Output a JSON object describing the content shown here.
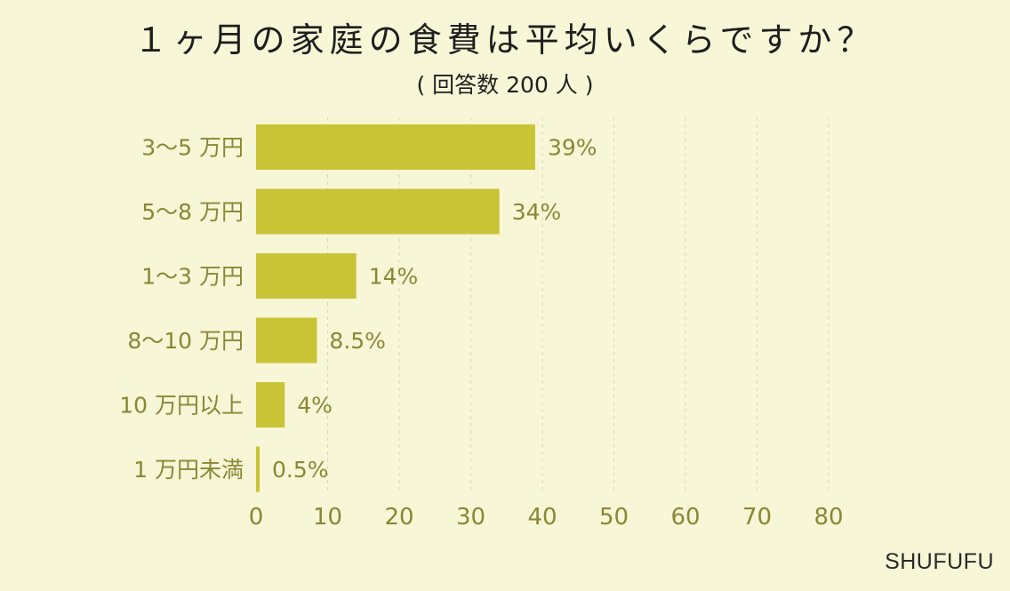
{
  "title": "１ヶ月の家庭の食費は平均いくらですか？",
  "subtitle": "( 回答数 200 人 )",
  "brand": "SHUFUFU",
  "colors": {
    "background": "#f7f6d6",
    "bar": "#c9c336",
    "label": "#8a8735",
    "grid": "#d9d8b8"
  },
  "chart_data": {
    "type": "bar",
    "orientation": "horizontal",
    "categories": [
      "3～5 万円",
      "5～8 万円",
      "1～3 万円",
      "8～10 万円",
      "10 万円以上",
      "1 万円未満"
    ],
    "values": [
      39,
      34,
      14,
      8.5,
      4,
      0.5
    ],
    "value_labels": [
      "39%",
      "34%",
      "14%",
      "8.5%",
      "4%",
      "0.5%"
    ],
    "xlim": [
      0,
      80
    ],
    "xticks": [
      "0",
      "10",
      "20",
      "30",
      "40",
      "50",
      "60",
      "70",
      "80"
    ],
    "grid": "vertical-dashed",
    "legend": "none"
  }
}
